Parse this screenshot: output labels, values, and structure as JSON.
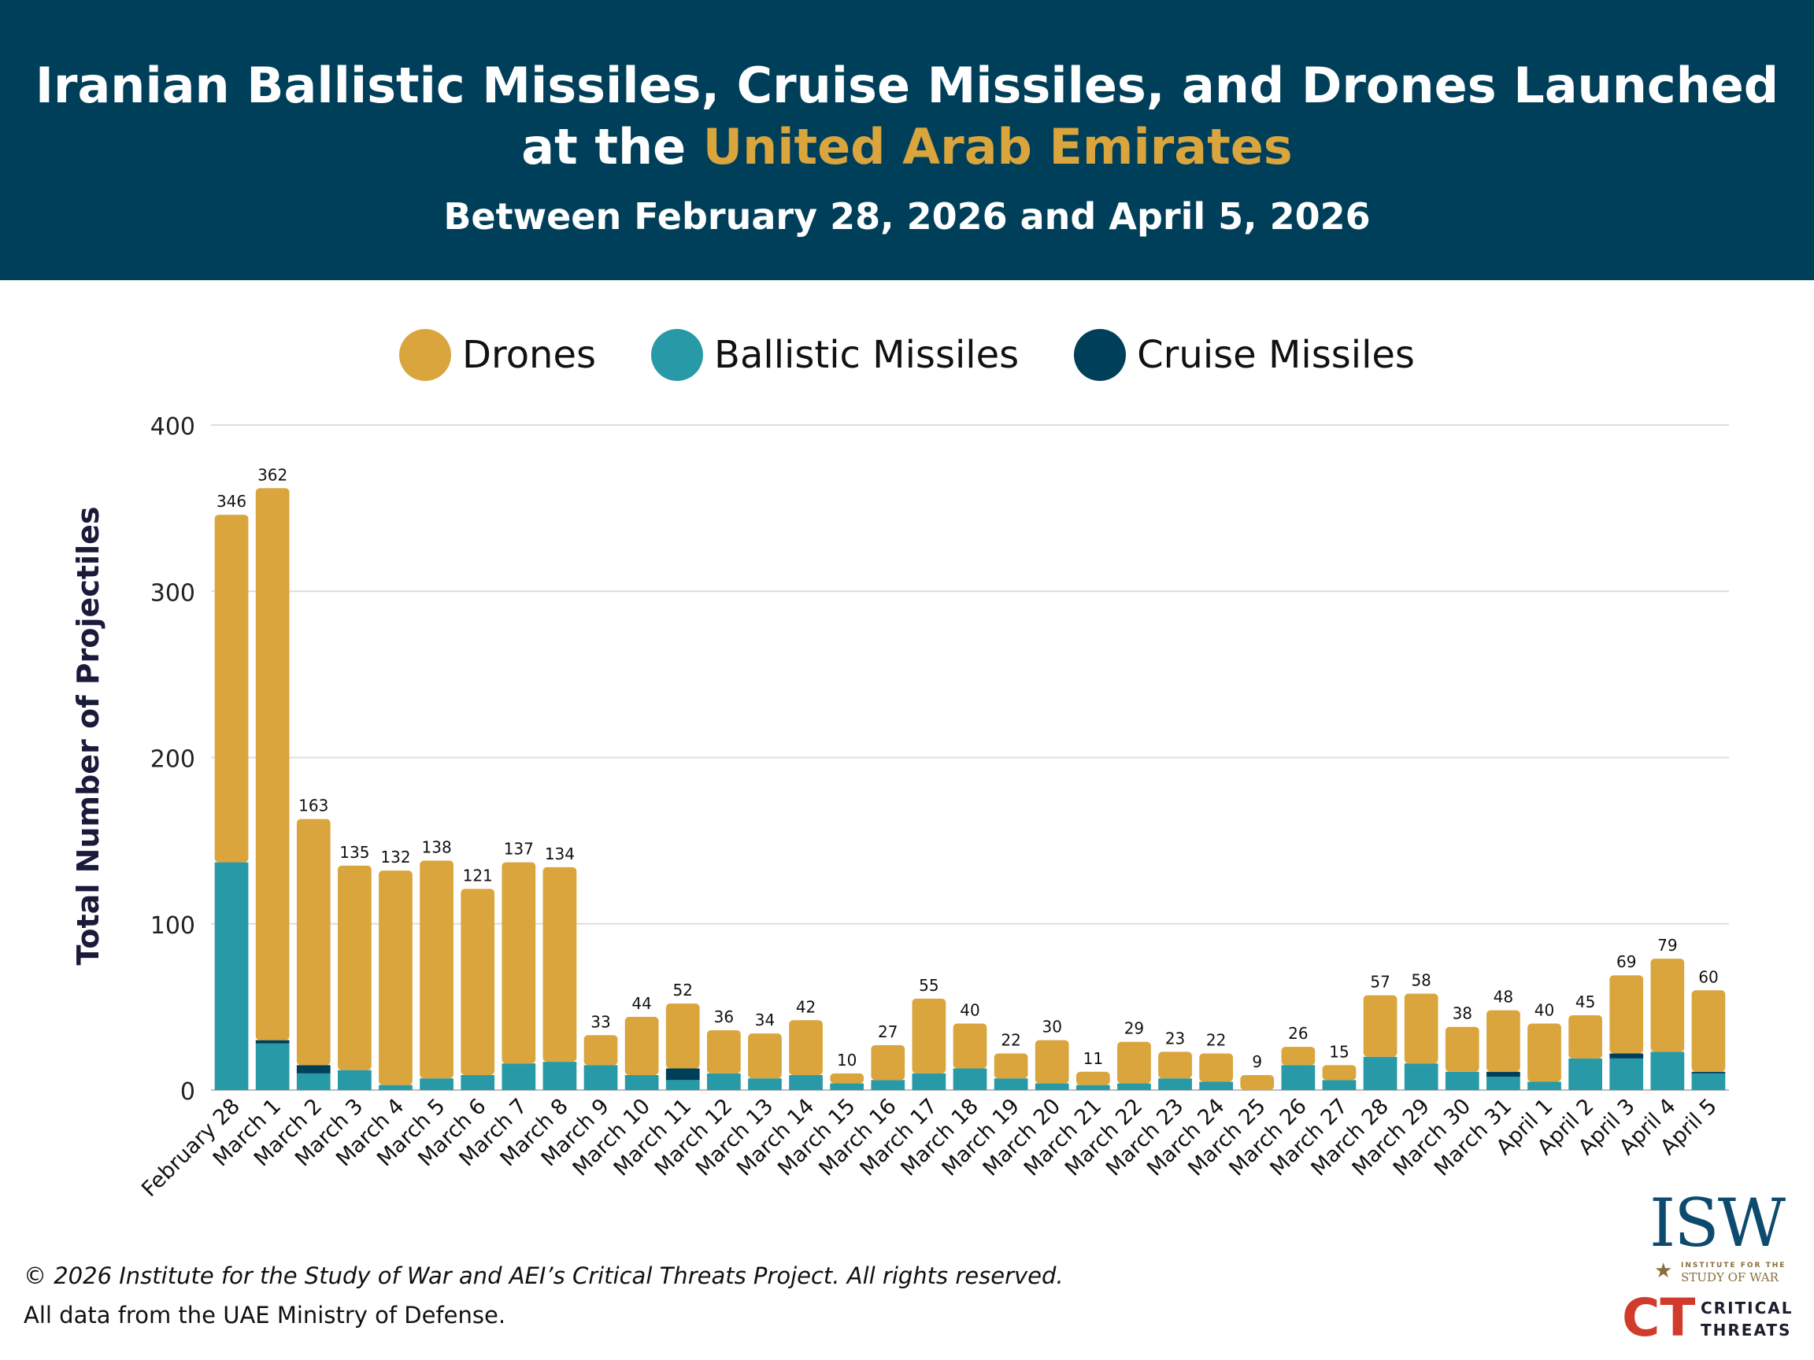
{
  "header": {
    "title_line1": "Iranian Ballistic Missiles, Cruise Missiles, and Drones Launched",
    "title_line2_prefix": "at the ",
    "title_line2_accent": "United Arab Emirates",
    "subtitle": "Between February 28, 2026 and April 5, 2026"
  },
  "footer": {
    "copyright": "© 2026 Institute for the Study of War and AEI’s Critical Threats Project. All rights reserved.",
    "source": "All data from the UAE Ministry of Defense."
  },
  "logos": {
    "isw": "ISW",
    "isw_line1": "INSTITUTE FOR THE",
    "isw_line2": "STUDY OF WAR",
    "ct": "CT",
    "ct_line1": "CRITICAL",
    "ct_line2": "THREATS"
  },
  "colors": {
    "header_bg": "#003f5a",
    "drones": "#d9a53c",
    "ballistic": "#2899a6",
    "cruise": "#003f5a",
    "accent": "#d9a53c"
  },
  "chart_data": {
    "type": "bar",
    "stacked": true,
    "ylabel": "Total Number of Projectiles",
    "ylim": [
      0,
      400
    ],
    "yticks": [
      0,
      100,
      200,
      300,
      400
    ],
    "grid": true,
    "legend_placement": "top",
    "categories": [
      "February 28",
      "March 1",
      "March 2",
      "March 3",
      "March 4",
      "March 5",
      "March 6",
      "March 7",
      "March 8",
      "March 9",
      "March 10",
      "March 11",
      "March 12",
      "March 13",
      "March 14",
      "March 15",
      "March 16",
      "March 17",
      "March 18",
      "March 19",
      "March 20",
      "March 21",
      "March 22",
      "March 23",
      "March 24",
      "March 25",
      "March 26",
      "March 27",
      "March 28",
      "March 29",
      "March 30",
      "March 31",
      "April 1",
      "April 2",
      "April 3",
      "April 4",
      "April 5"
    ],
    "totals": [
      346,
      362,
      163,
      135,
      132,
      138,
      121,
      137,
      134,
      33,
      44,
      52,
      36,
      34,
      42,
      10,
      27,
      55,
      40,
      22,
      30,
      11,
      29,
      23,
      22,
      9,
      26,
      15,
      57,
      58,
      38,
      48,
      40,
      45,
      69,
      79,
      60
    ],
    "series": [
      {
        "name": "Ballistic Missiles",
        "color": "#2899a6",
        "values": [
          137,
          28,
          10,
          12,
          3,
          7,
          9,
          16,
          17,
          15,
          9,
          6,
          10,
          7,
          9,
          4,
          6,
          10,
          13,
          7,
          4,
          3,
          4,
          7,
          5,
          0,
          15,
          6,
          20,
          16,
          11,
          8,
          5,
          19,
          19,
          23,
          10
        ]
      },
      {
        "name": "Cruise Missiles",
        "color": "#003f5a",
        "values": [
          0,
          2,
          5,
          0,
          0,
          0,
          0,
          0,
          0,
          0,
          0,
          7,
          0,
          0,
          0,
          0,
          0,
          0,
          0,
          0,
          0,
          0,
          0,
          0,
          0,
          0,
          0,
          0,
          0,
          0,
          0,
          3,
          0,
          0,
          3,
          0,
          1
        ]
      },
      {
        "name": "Drones",
        "color": "#d9a53c",
        "values": [
          209,
          332,
          148,
          123,
          129,
          131,
          112,
          121,
          117,
          18,
          35,
          39,
          26,
          27,
          33,
          6,
          21,
          45,
          27,
          15,
          26,
          8,
          25,
          16,
          17,
          9,
          11,
          9,
          37,
          42,
          27,
          37,
          35,
          26,
          47,
          56,
          49
        ]
      }
    ]
  }
}
